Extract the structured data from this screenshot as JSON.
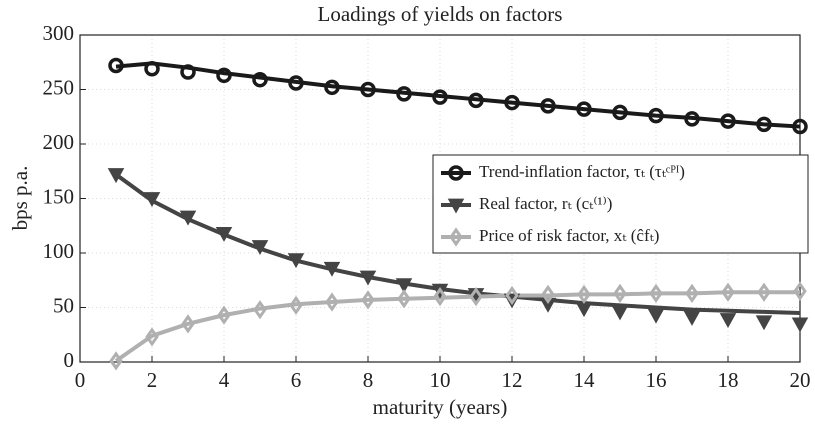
{
  "chart_data": {
    "type": "line",
    "title": "Loadings of yields on factors",
    "xlabel": "maturity (years)",
    "ylabel": "bps p.a.",
    "x": [
      1,
      2,
      3,
      4,
      5,
      6,
      7,
      8,
      9,
      10,
      11,
      12,
      13,
      14,
      15,
      16,
      17,
      18,
      19,
      20
    ],
    "xlim": [
      0,
      20
    ],
    "xticks": [
      0,
      2,
      4,
      6,
      8,
      10,
      12,
      14,
      16,
      18,
      20
    ],
    "ylim": [
      0,
      300
    ],
    "yticks": [
      0,
      50,
      100,
      150,
      200,
      250,
      300
    ],
    "grid": true,
    "legend": "right",
    "series": [
      {
        "name": "Trend-inflation factor, τₜ (τₜᶜᴾᴵ)",
        "color": "#1a1a1a",
        "marker": "circle",
        "values": [
          272,
          269,
          266,
          263,
          259,
          256,
          252,
          250,
          246,
          243,
          240,
          238,
          235,
          232,
          229,
          226,
          223,
          221,
          218,
          216
        ],
        "fit": [
          271,
          274,
          270,
          265,
          261,
          257,
          253,
          250,
          247,
          244,
          241,
          238,
          235,
          232,
          229,
          226,
          224,
          221,
          218,
          216
        ]
      },
      {
        "name": "Real factor, rₜ (cₜ⁽¹⁾)",
        "color": "#444444",
        "marker": "triangle",
        "values": [
          172,
          150,
          133,
          118,
          106,
          94,
          86,
          78,
          71,
          66,
          62,
          57,
          53,
          49,
          46,
          43,
          41,
          39,
          37,
          35
        ],
        "fit": [
          172,
          148,
          131,
          117,
          104,
          93,
          85,
          78,
          72,
          67,
          63,
          60,
          57,
          54,
          52,
          50,
          48,
          47,
          46,
          45
        ]
      },
      {
        "name": "Price of risk factor, xₜ (ĉfₜ)",
        "color": "#b0b0b0",
        "marker": "diamond",
        "values": [
          1,
          23,
          35,
          43,
          48,
          52,
          55,
          57,
          58,
          60,
          60,
          61,
          62,
          62,
          63,
          63,
          63,
          64,
          64,
          65
        ],
        "fit": [
          1,
          24,
          35,
          43,
          49,
          53,
          55,
          57,
          58,
          59,
          60,
          61,
          61,
          62,
          62,
          63,
          63,
          64,
          64,
          64
        ]
      }
    ]
  }
}
